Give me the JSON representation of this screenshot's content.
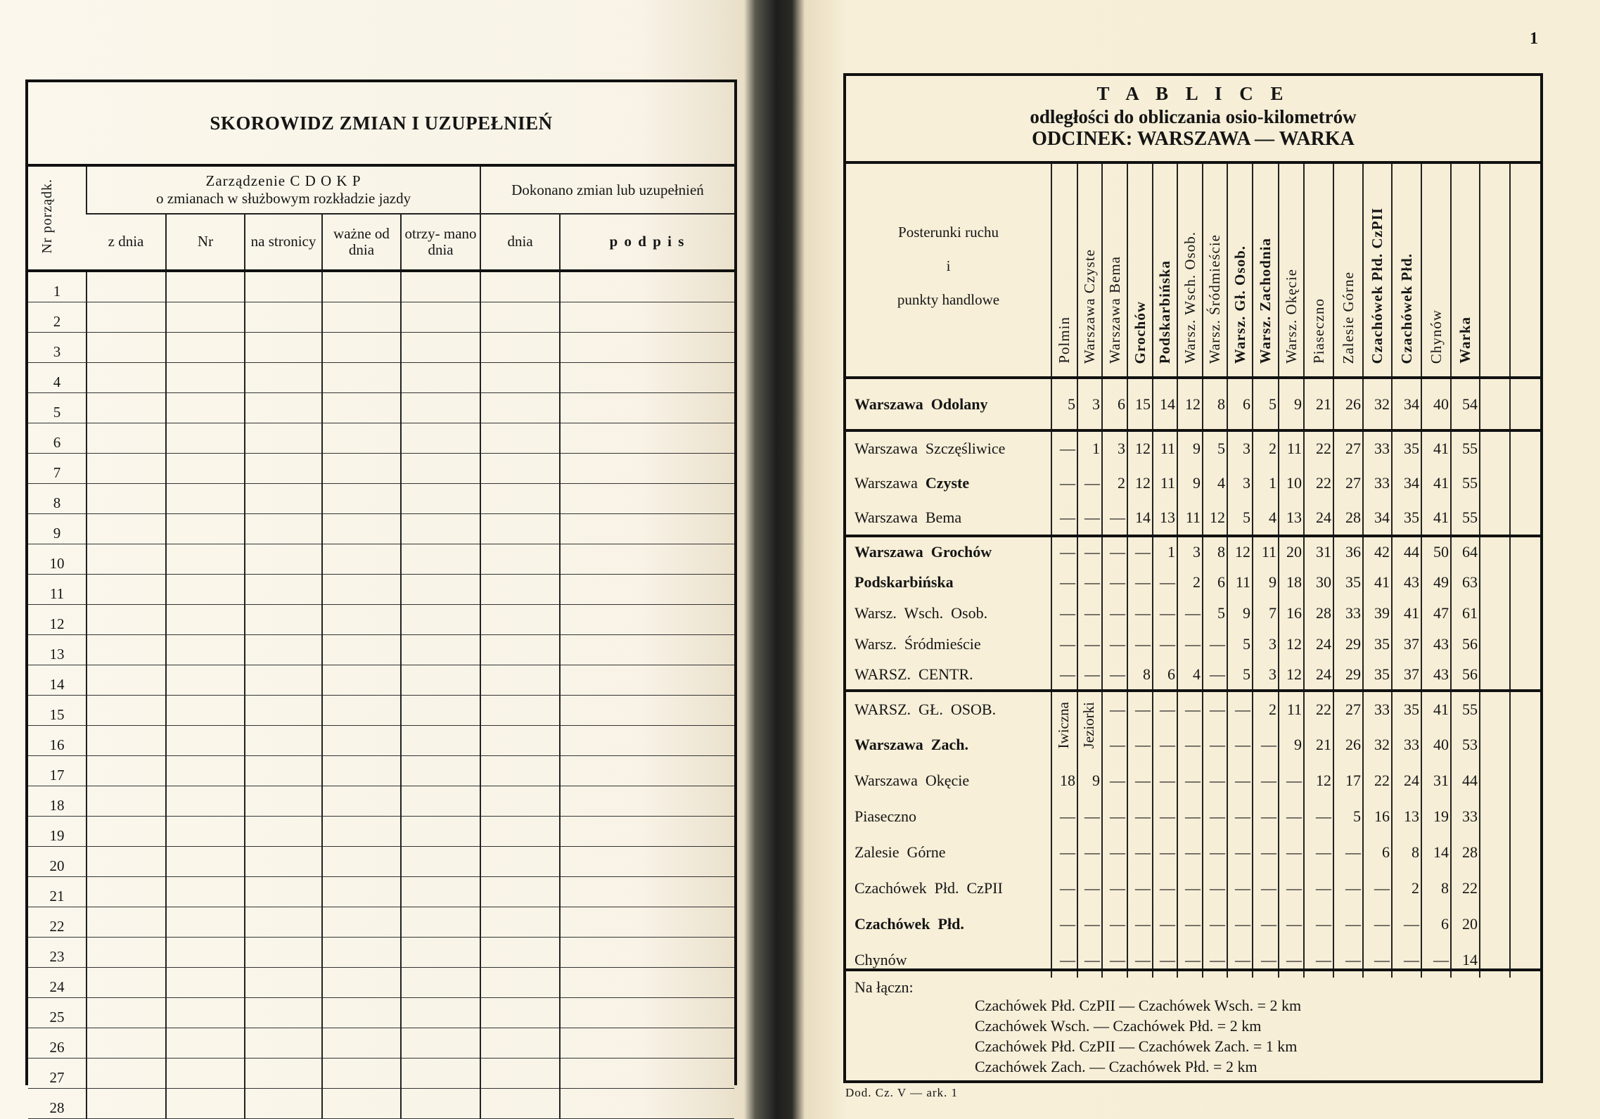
{
  "left_page": {
    "title": "SKOROWIDZ ZMIAN I UZUPEŁNIEŃ",
    "col_nr": "Nr porządk.",
    "group1": "Zarządzenie  C D O K P\no zmianach w służbowym rozkładzie jazdy",
    "group1_line1": "Zarządzenie  C D O K P",
    "group1_line2": "o zmianach  w  służbowym  rozkładzie  jazdy",
    "group2": "Dokonano zmian lub uzupełnień",
    "sub_columns": [
      "z dnia",
      "Nr",
      "na stronicy",
      "ważne od dnia",
      "otrzy- mano dnia",
      "dnia",
      "p o d p i s"
    ],
    "rows": [
      "1",
      "2",
      "3",
      "4",
      "5",
      "6",
      "7",
      "8",
      "9",
      "10",
      "11",
      "12",
      "13",
      "14",
      "15",
      "16",
      "17",
      "18",
      "19",
      "20",
      "21",
      "22",
      "23",
      "24",
      "25",
      "26",
      "27",
      "28"
    ]
  },
  "right_page": {
    "page_number": "1",
    "title": "T A B L I C E",
    "subtitle": "odległości do obliczania osio-kilometrów",
    "section": "ODCINEK: WARSZAWA — WARKA",
    "row_header": [
      "Posterunki  ruchu",
      "i",
      "punkty  handlowe"
    ],
    "columns": [
      {
        "label": "Polmin",
        "bold": false
      },
      {
        "label": "Warszawa Czyste",
        "bold": false
      },
      {
        "label": "Warszawa Bema",
        "bold": false
      },
      {
        "label": "Grochów",
        "bold": true
      },
      {
        "label": "Podskarbińska",
        "bold": true
      },
      {
        "label": "Warsz. Wsch. Osob.",
        "bold": false
      },
      {
        "label": "Warsz. Śródmieście",
        "bold": false
      },
      {
        "label": "Warsz. Gł. Osob.",
        "bold": true
      },
      {
        "label": "Warsz. Zachodnia",
        "bold": true
      },
      {
        "label": "Warsz. Okęcie",
        "bold": false
      },
      {
        "label": "Piaseczno",
        "bold": false
      },
      {
        "label": "Zalesie Górne",
        "bold": false
      },
      {
        "label": "Czachówek Płd. CzPII",
        "bold": true
      },
      {
        "label": "Czachówek Płd.",
        "bold": true
      },
      {
        "label": "Chynów",
        "bold": false
      },
      {
        "label": "Warka",
        "bold": true
      }
    ],
    "sections": [
      {
        "rows": [
          {
            "label": [
              {
                "text": "Warszawa  Odolany",
                "bold": true
              }
            ],
            "values": [
              "5",
              "3",
              "6",
              "15",
              "14",
              "12",
              "8",
              "6",
              "5",
              "9",
              "21",
              "26",
              "32",
              "34",
              "40",
              "54"
            ]
          }
        ]
      },
      {
        "rows": [
          {
            "label": [
              {
                "text": "Warszawa  Szczęśliwice",
                "bold": false
              }
            ],
            "values": [
              "—",
              "1",
              "3",
              "12",
              "11",
              "9",
              "5",
              "3",
              "2",
              "11",
              "22",
              "27",
              "33",
              "35",
              "41",
              "55"
            ]
          },
          {
            "label": [
              {
                "text": "Warszawa  ",
                "bold": false
              },
              {
                "text": "Czyste",
                "bold": true
              }
            ],
            "values": [
              "—",
              "—",
              "2",
              "12",
              "11",
              "9",
              "4",
              "3",
              "1",
              "10",
              "22",
              "27",
              "33",
              "34",
              "41",
              "55"
            ]
          },
          {
            "label": [
              {
                "text": "Warszawa  Bema",
                "bold": false
              }
            ],
            "values": [
              "—",
              "—",
              "—",
              "14",
              "13",
              "11",
              "12",
              "5",
              "4",
              "13",
              "24",
              "28",
              "34",
              "35",
              "41",
              "55"
            ]
          }
        ]
      },
      {
        "rows": [
          {
            "label": [
              {
                "text": "Warszawa  Grochów",
                "bold": true
              }
            ],
            "values": [
              "—",
              "—",
              "—",
              "—",
              "1",
              "3",
              "8",
              "12",
              "11",
              "20",
              "31",
              "36",
              "42",
              "44",
              "50",
              "64"
            ]
          },
          {
            "label": [
              {
                "text": "Podskarbińska",
                "bold": true
              }
            ],
            "values": [
              "—",
              "—",
              "—",
              "—",
              "—",
              "2",
              "6",
              "11",
              "9",
              "18",
              "30",
              "35",
              "41",
              "43",
              "49",
              "63"
            ]
          },
          {
            "label": [
              {
                "text": "Warsz.  Wsch.  Osob.",
                "bold": false
              }
            ],
            "values": [
              "—",
              "—",
              "—",
              "—",
              "—",
              "—",
              "5",
              "9",
              "7",
              "16",
              "28",
              "33",
              "39",
              "41",
              "47",
              "61"
            ]
          },
          {
            "label": [
              {
                "text": "Warsz.  Śródmieście",
                "bold": false
              }
            ],
            "values": [
              "—",
              "—",
              "—",
              "—",
              "—",
              "—",
              "—",
              "5",
              "3",
              "12",
              "24",
              "29",
              "35",
              "37",
              "43",
              "56"
            ]
          },
          {
            "label": [
              {
                "text": "WARSZ.  CENTR.",
                "bold": false
              }
            ],
            "values": [
              "—",
              "—",
              "—",
              "8",
              "6",
              "4",
              "—",
              "5",
              "3",
              "12",
              "24",
              "29",
              "35",
              "37",
              "43",
              "56"
            ]
          }
        ]
      },
      {
        "rows": [
          {
            "label": [
              {
                "text": "WARSZ.  GŁ.  OSOB.",
                "bold": false
              }
            ],
            "span_labels": [
              "Iwiczna",
              "Jeziorki"
            ],
            "values": [
              "—",
              "—",
              "—",
              "—",
              "—",
              "—",
              "2",
              "11",
              "22",
              "27",
              "33",
              "35",
              "41",
              "55"
            ]
          },
          {
            "label": [
              {
                "text": "Warszawa  Zach.",
                "bold": true
              }
            ],
            "spanned": true,
            "values": [
              "—",
              "—",
              "—",
              "—",
              "—",
              "—",
              "—",
              "9",
              "21",
              "26",
              "32",
              "33",
              "40",
              "53"
            ]
          },
          {
            "label": [
              {
                "text": "Warszawa  Okęcie",
                "bold": false
              }
            ],
            "values": [
              "18",
              "9",
              "—",
              "—",
              "—",
              "—",
              "—",
              "—",
              "—",
              "—",
              "12",
              "17",
              "22",
              "24",
              "31",
              "44"
            ]
          },
          {
            "label": [
              {
                "text": "Piaseczno",
                "bold": false
              }
            ],
            "values": [
              "—",
              "—",
              "—",
              "—",
              "—",
              "—",
              "—",
              "—",
              "—",
              "—",
              "—",
              "5",
              "16",
              "13",
              "19",
              "33"
            ]
          },
          {
            "label": [
              {
                "text": "Zalesie  Górne",
                "bold": false
              }
            ],
            "values": [
              "—",
              "—",
              "—",
              "—",
              "—",
              "—",
              "—",
              "—",
              "—",
              "—",
              "—",
              "—",
              "6",
              "8",
              "14",
              "28"
            ]
          },
          {
            "label": [
              {
                "text": "Czachówek  Płd.  CzPII",
                "bold": false
              }
            ],
            "values": [
              "—",
              "—",
              "—",
              "—",
              "—",
              "—",
              "—",
              "—",
              "—",
              "—",
              "—",
              "—",
              "—",
              "2",
              "8",
              "22"
            ]
          },
          {
            "label": [
              {
                "text": "Czachówek  Płd.",
                "bold": true
              }
            ],
            "values": [
              "—",
              "—",
              "—",
              "—",
              "—",
              "—",
              "—",
              "—",
              "—",
              "—",
              "—",
              "—",
              "—",
              "—",
              "6",
              "20"
            ]
          },
          {
            "label": [
              {
                "text": "Chynów",
                "bold": false
              }
            ],
            "values": [
              "—",
              "—",
              "—",
              "—",
              "—",
              "—",
              "—",
              "—",
              "—",
              "—",
              "—",
              "—",
              "—",
              "—",
              "—",
              "14"
            ]
          }
        ]
      }
    ],
    "footer": {
      "heading": "Na łączn:",
      "lines": [
        "Czachówek Płd. CzPII — Czachówek Wsch. = 2 km",
        "Czachówek Wsch. — Czachówek Płd. = 2 km",
        "Czachówek Płd. CzPII — Czachówek Zach. = 1 km",
        "Czachówek Zach. — Czachówek Płd. = 2 km"
      ]
    },
    "sheet_ref": "Dod. Cz. V — ark. 1"
  }
}
